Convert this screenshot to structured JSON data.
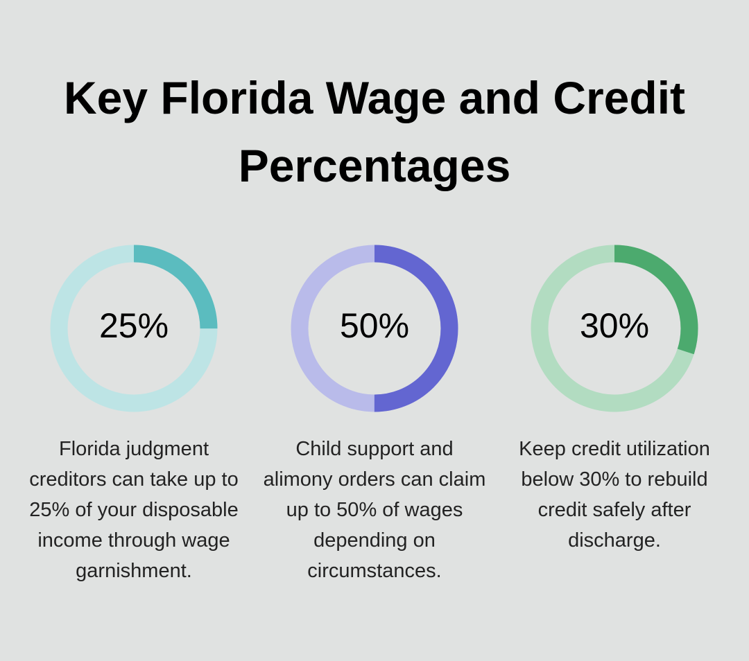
{
  "title": "Key Florida Wage and Credit Percentages",
  "chart_data": [
    {
      "type": "donut",
      "values": [
        25
      ],
      "value_labels": [
        "25%"
      ],
      "color": "#5bbcbf",
      "track_color": "#bde4e5",
      "caption": "Florida judgment creditors can take up to 25% of your disposable income through wage garnishment."
    },
    {
      "type": "donut",
      "values": [
        50
      ],
      "value_labels": [
        "50%"
      ],
      "color": "#6366d1",
      "track_color": "#b9bbea",
      "caption": "Child support and alimony orders can claim up to 50% of wages depending on circumstances."
    },
    {
      "type": "donut",
      "values": [
        30
      ],
      "value_labels": [
        "30%"
      ],
      "color": "#4caa6e",
      "track_color": "#b2dcc1",
      "caption": "Keep credit utilization below 30% to rebuild credit safely after discharge."
    }
  ]
}
